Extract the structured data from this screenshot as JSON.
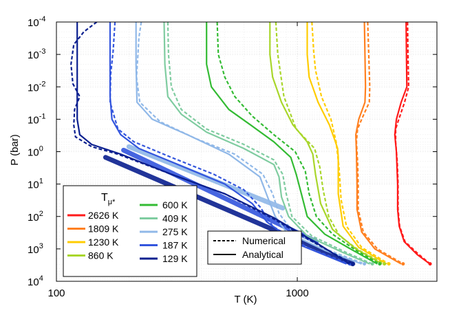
{
  "chart_data": {
    "type": "line",
    "xlabel": "T (K)",
    "ylabel": "P (bar)",
    "xscale": "log",
    "yscale": "log",
    "xlim": [
      100,
      3800
    ],
    "ylim": [
      10000,
      0.0001
    ],
    "x_ticks": [
      {
        "value": 100,
        "label": "100"
      },
      {
        "value": 1000,
        "label": "1000"
      }
    ],
    "y_ticks": [
      {
        "value": 0.0001,
        "base": "10",
        "exp": "-4"
      },
      {
        "value": 0.001,
        "base": "10",
        "exp": "-3"
      },
      {
        "value": 0.01,
        "base": "10",
        "exp": "-2"
      },
      {
        "value": 0.1,
        "base": "10",
        "exp": "-1"
      },
      {
        "value": 1,
        "base": "10",
        "exp": "0"
      },
      {
        "value": 10,
        "base": "10",
        "exp": "1"
      },
      {
        "value": 100,
        "base": "10",
        "exp": "2"
      },
      {
        "value": 1000,
        "base": "10",
        "exp": "3"
      },
      {
        "value": 10000,
        "base": "10",
        "exp": "4"
      }
    ],
    "legend_title": {
      "main": "T",
      "sub": "μ*"
    },
    "legend_position": "bottom-left",
    "style_legend": [
      {
        "label": "Numerical",
        "dash": "dashed"
      },
      {
        "label": "Analytical",
        "dash": "solid"
      }
    ],
    "style_legend_position": "bottom-center",
    "series": [
      {
        "name": "2626 K",
        "color": "#ff1a1a",
        "numerical": [
          [
            2870,
            0.0001
          ],
          [
            2880,
            0.001
          ],
          [
            2900,
            0.01
          ],
          [
            2790,
            0.03
          ],
          [
            2640,
            0.1
          ],
          [
            2560,
            0.2
          ],
          [
            2560,
            0.5
          ],
          [
            2600,
            2
          ],
          [
            2620,
            10
          ],
          [
            2620,
            60
          ],
          [
            2660,
            200
          ],
          [
            2800,
            600
          ],
          [
            3200,
            1500
          ],
          [
            3560,
            2900
          ]
        ],
        "analytical": [
          [
            2830,
            0.0001
          ],
          [
            2840,
            0.001
          ],
          [
            2850,
            0.01
          ],
          [
            2700,
            0.03
          ],
          [
            2580,
            0.1
          ],
          [
            2540,
            0.3
          ],
          [
            2580,
            1
          ],
          [
            2610,
            10
          ],
          [
            2610,
            60
          ],
          [
            2650,
            200
          ],
          [
            2780,
            600
          ],
          [
            3150,
            1500
          ],
          [
            3550,
            2900
          ]
        ]
      },
      {
        "name": "1809 K",
        "color": "#ff8020",
        "numerical": [
          [
            1960,
            0.0001
          ],
          [
            1980,
            0.001
          ],
          [
            2000,
            0.01
          ],
          [
            1990,
            0.03
          ],
          [
            1850,
            0.1
          ],
          [
            1780,
            0.2
          ],
          [
            1760,
            0.5
          ],
          [
            1780,
            2
          ],
          [
            1790,
            10
          ],
          [
            1790,
            60
          ],
          [
            1880,
            300
          ],
          [
            2150,
            1000
          ],
          [
            2750,
            2900
          ]
        ],
        "analytical": [
          [
            1900,
            0.0001
          ],
          [
            1910,
            0.001
          ],
          [
            1920,
            0.01
          ],
          [
            1910,
            0.03
          ],
          [
            1800,
            0.1
          ],
          [
            1750,
            0.3
          ],
          [
            1760,
            1
          ],
          [
            1770,
            10
          ],
          [
            1770,
            60
          ],
          [
            1850,
            300
          ],
          [
            2100,
            1000
          ],
          [
            2700,
            2900
          ]
        ]
      },
      {
        "name": "1230 K",
        "color": "#ffcc00",
        "numerical": [
          [
            1150,
            0.0001
          ],
          [
            1170,
            0.0008
          ],
          [
            1190,
            0.003
          ],
          [
            1260,
            0.02
          ],
          [
            1380,
            0.1
          ],
          [
            1450,
            0.5
          ],
          [
            1490,
            3
          ],
          [
            1520,
            30
          ],
          [
            1600,
            200
          ],
          [
            1850,
            900
          ],
          [
            2400,
            2900
          ]
        ],
        "analytical": [
          [
            1100,
            0.0001
          ],
          [
            1100,
            0.001
          ],
          [
            1120,
            0.005
          ],
          [
            1220,
            0.03
          ],
          [
            1360,
            0.15
          ],
          [
            1440,
            0.5
          ],
          [
            1470,
            0.8
          ],
          [
            1480,
            1.5
          ],
          [
            1480,
            20
          ],
          [
            1550,
            200
          ],
          [
            1800,
            900
          ],
          [
            2350,
            2900
          ]
        ]
      },
      {
        "name": "860 K",
        "color": "#a8d62a",
        "numerical": [
          [
            815,
            0.0001
          ],
          [
            830,
            0.001
          ],
          [
            880,
            0.02
          ],
          [
            990,
            0.2
          ],
          [
            1180,
            0.8
          ],
          [
            1240,
            3
          ],
          [
            1280,
            15
          ],
          [
            1350,
            100
          ],
          [
            1500,
            400
          ],
          [
            1800,
            1100
          ],
          [
            2300,
            2900
          ]
        ],
        "analytical": [
          [
            770,
            0.0001
          ],
          [
            770,
            0.001
          ],
          [
            790,
            0.005
          ],
          [
            860,
            0.03
          ],
          [
            960,
            0.15
          ],
          [
            1100,
            0.5
          ],
          [
            1160,
            1.2
          ],
          [
            1190,
            5
          ],
          [
            1250,
            40
          ],
          [
            1400,
            250
          ],
          [
            1750,
            1000
          ],
          [
            2250,
            2900
          ]
        ]
      },
      {
        "name": "600 K",
        "color": "#33bb33",
        "numerical": [
          [
            465,
            0.0001
          ],
          [
            470,
            0.001
          ],
          [
            500,
            0.005
          ],
          [
            550,
            0.02
          ],
          [
            650,
            0.08
          ],
          [
            800,
            0.3
          ],
          [
            980,
            1
          ],
          [
            1080,
            4
          ],
          [
            1120,
            20
          ],
          [
            1200,
            100
          ],
          [
            1400,
            350
          ],
          [
            1750,
            1100
          ],
          [
            2200,
            2900
          ]
        ],
        "analytical": [
          [
            420,
            0.0001
          ],
          [
            420,
            0.002
          ],
          [
            440,
            0.01
          ],
          [
            520,
            0.05
          ],
          [
            640,
            0.15
          ],
          [
            800,
            0.5
          ],
          [
            940,
            1.5
          ],
          [
            990,
            5
          ],
          [
            1040,
            20
          ],
          [
            1100,
            100
          ],
          [
            1300,
            350
          ],
          [
            1700,
            1100
          ],
          [
            2150,
            2900
          ]
        ]
      },
      {
        "name": "409 K",
        "color": "#7fcca0",
        "numerical": [
          [
            290,
            0.0001
          ],
          [
            292,
            0.001
          ],
          [
            300,
            0.01
          ],
          [
            330,
            0.05
          ],
          [
            420,
            0.2
          ],
          [
            600,
            0.6
          ],
          [
            800,
            1.8
          ],
          [
            870,
            5
          ],
          [
            900,
            20
          ],
          [
            950,
            100
          ],
          [
            1150,
            400
          ],
          [
            1600,
            1300
          ],
          [
            2050,
            2900
          ]
        ],
        "analytical": [
          [
            280,
            0.0001
          ],
          [
            282,
            0.002
          ],
          [
            290,
            0.02
          ],
          [
            330,
            0.07
          ],
          [
            420,
            0.25
          ],
          [
            600,
            0.8
          ],
          [
            800,
            2.5
          ],
          [
            840,
            6
          ],
          [
            860,
            25
          ],
          [
            920,
            100
          ],
          [
            1100,
            400
          ],
          [
            1550,
            1300
          ],
          [
            2000,
            2900
          ]
        ]
      },
      {
        "name": "275 K",
        "color": "#90b8e8",
        "numerical": [
          [
            225,
            0.0001
          ],
          [
            220,
            0.0003
          ],
          [
            218,
            0.001
          ],
          [
            215,
            0.005
          ],
          [
            222,
            0.03
          ],
          [
            270,
            0.12
          ],
          [
            380,
            0.4
          ],
          [
            550,
            1.2
          ],
          [
            720,
            5
          ],
          [
            790,
            20
          ],
          [
            840,
            80
          ],
          [
            960,
            300
          ],
          [
            1350,
            1100
          ],
          [
            1900,
            2900
          ]
        ],
        "analytical": [
          [
            214,
            0.0001
          ],
          [
            214,
            0.002
          ],
          [
            216,
            0.03
          ],
          [
            250,
            0.1
          ],
          [
            350,
            0.3
          ],
          [
            520,
            1.2
          ],
          [
            700,
            6
          ],
          [
            760,
            30
          ],
          [
            810,
            100
          ],
          [
            900,
            300
          ],
          [
            1300,
            1100
          ],
          [
            1850,
            2900
          ]
        ]
      },
      {
        "name": "187 K",
        "color": "#3355dd",
        "numerical": [
          [
            175,
            0.0001
          ],
          [
            172,
            0.0008
          ],
          [
            168,
            0.004
          ],
          [
            167,
            0.03
          ],
          [
            180,
            0.2
          ],
          [
            210,
            0.5
          ],
          [
            300,
            1.5
          ],
          [
            450,
            5
          ],
          [
            600,
            15
          ],
          [
            700,
            50
          ],
          [
            790,
            200
          ],
          [
            1100,
            900
          ],
          [
            1650,
            2900
          ]
        ],
        "analytical": [
          [
            167,
            0.0001
          ],
          [
            167,
            0.001
          ],
          [
            167,
            0.02
          ],
          [
            170,
            0.1
          ],
          [
            185,
            0.3
          ],
          [
            220,
            0.8
          ],
          [
            320,
            2.5
          ],
          [
            500,
            10
          ],
          [
            650,
            40
          ],
          [
            750,
            150
          ],
          [
            1000,
            700
          ],
          [
            1600,
            2900
          ]
        ]
      },
      {
        "name": "129 K",
        "color": "#0a1f8f",
        "numerical": [
          [
            147,
            0.0001
          ],
          [
            130,
            0.0002
          ],
          [
            118,
            0.0005
          ],
          [
            115,
            0.002
          ],
          [
            117,
            0.008
          ],
          [
            125,
            0.02
          ],
          [
            119,
            0.05
          ],
          [
            118,
            0.15
          ],
          [
            120,
            0.35
          ],
          [
            140,
            0.7
          ],
          [
            180,
            1.2
          ],
          [
            300,
            5
          ],
          [
            500,
            20
          ],
          [
            800,
            120
          ],
          [
            1200,
            700
          ],
          [
            1700,
            2900
          ]
        ],
        "analytical": [
          [
            122,
            0.0001
          ],
          [
            122,
            0.005
          ],
          [
            122,
            0.1
          ],
          [
            125,
            0.3
          ],
          [
            140,
            0.6
          ],
          [
            185,
            1.2
          ],
          [
            300,
            5
          ],
          [
            500,
            20
          ],
          [
            800,
            110
          ],
          [
            1200,
            650
          ],
          [
            1650,
            2900
          ]
        ]
      }
    ],
    "deep_bands": [
      {
        "series": "275 K",
        "x": [
          200,
          870
        ],
        "y": [
          0.7,
          55
        ],
        "color": "#90b8e8"
      },
      {
        "series": "187 K",
        "x": [
          190,
          1200
        ],
        "y": [
          0.9,
          600
        ],
        "color": "#3355dd"
      },
      {
        "name": "cool",
        "x": [
          160,
          1700
        ],
        "y": [
          1.5,
          2900
        ],
        "color": "#0a1f8f"
      }
    ]
  }
}
